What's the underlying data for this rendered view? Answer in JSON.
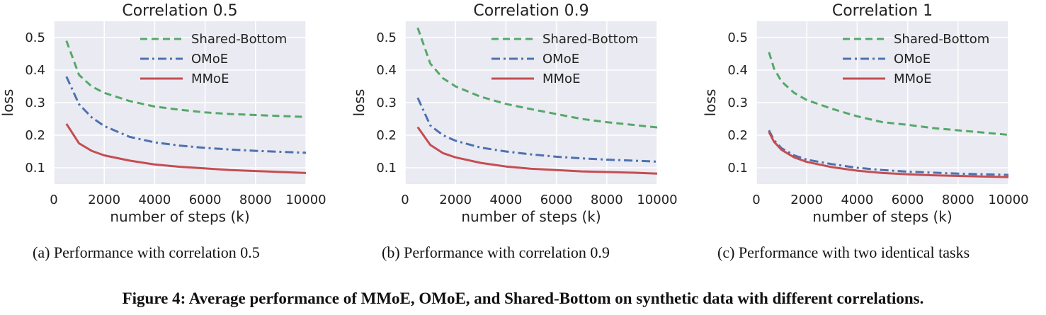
{
  "figure_caption": "Figure 4: Average performance of MMoE, OMoE, and Shared-Bottom on synthetic data with different correlations.",
  "colors": {
    "Shared-Bottom": "#55a868",
    "OMoE": "#4c72b0",
    "MMoE": "#c44e52",
    "plot_background": "#eaeaf2",
    "grid": "#ffffff"
  },
  "chart_data": [
    {
      "type": "line",
      "title": "Correlation 0.5",
      "caption": "(a) Performance with correlation 0.5",
      "xlabel": "number of steps (k)",
      "ylabel": "loss",
      "xlim": [
        0,
        10000
      ],
      "ylim": [
        0.05,
        0.55
      ],
      "xticks": [
        0,
        2000,
        4000,
        6000,
        8000,
        10000
      ],
      "yticks": [
        0.1,
        0.2,
        0.3,
        0.4,
        0.5
      ],
      "ytick_labels": [
        "0.1",
        "0.2",
        "0.3",
        "0.4",
        "0.5"
      ],
      "grid": true,
      "legend": "top-right",
      "x": [
        500,
        1000,
        1500,
        2000,
        3000,
        4000,
        5000,
        6000,
        7000,
        8000,
        9000,
        10000
      ],
      "series": [
        {
          "name": "Shared-Bottom",
          "style": "dashed",
          "values": [
            0.49,
            0.385,
            0.35,
            0.33,
            0.305,
            0.288,
            0.278,
            0.27,
            0.265,
            0.262,
            0.259,
            0.256
          ]
        },
        {
          "name": "OMoE",
          "style": "dashdot",
          "values": [
            0.38,
            0.295,
            0.255,
            0.228,
            0.195,
            0.178,
            0.168,
            0.161,
            0.156,
            0.152,
            0.149,
            0.146
          ]
        },
        {
          "name": "MMoE",
          "style": "solid",
          "values": [
            0.235,
            0.175,
            0.152,
            0.138,
            0.122,
            0.11,
            0.103,
            0.098,
            0.093,
            0.09,
            0.087,
            0.084
          ]
        }
      ]
    },
    {
      "type": "line",
      "title": "Correlation 0.9",
      "caption": "(b) Performance with correlation 0.9",
      "xlabel": "number of steps (k)",
      "ylabel": "loss",
      "xlim": [
        0,
        10000
      ],
      "ylim": [
        0.05,
        0.55
      ],
      "xticks": [
        0,
        2000,
        4000,
        6000,
        8000,
        10000
      ],
      "yticks": [
        0.1,
        0.2,
        0.3,
        0.4,
        0.5
      ],
      "ytick_labels": [
        "0.1",
        "0.2",
        "0.3",
        "0.4",
        "0.5"
      ],
      "grid": true,
      "legend": "top-right",
      "x": [
        500,
        1000,
        1500,
        2000,
        3000,
        4000,
        5000,
        6000,
        7000,
        8000,
        9000,
        10000
      ],
      "series": [
        {
          "name": "Shared-Bottom",
          "style": "dashed",
          "values": [
            0.53,
            0.42,
            0.375,
            0.35,
            0.318,
            0.296,
            0.28,
            0.265,
            0.25,
            0.24,
            0.232,
            0.224
          ]
        },
        {
          "name": "OMoE",
          "style": "dashdot",
          "values": [
            0.315,
            0.23,
            0.2,
            0.183,
            0.162,
            0.15,
            0.141,
            0.134,
            0.129,
            0.125,
            0.122,
            0.119
          ]
        },
        {
          "name": "MMoE",
          "style": "solid",
          "values": [
            0.225,
            0.17,
            0.145,
            0.132,
            0.115,
            0.104,
            0.097,
            0.093,
            0.089,
            0.087,
            0.085,
            0.082
          ]
        }
      ]
    },
    {
      "type": "line",
      "title": "Correlation 1",
      "caption": "(c) Performance with two identical tasks",
      "xlabel": "number of steps (k)",
      "ylabel": "loss",
      "xlim": [
        0,
        10000
      ],
      "ylim": [
        0.05,
        0.55
      ],
      "xticks": [
        0,
        2000,
        4000,
        6000,
        8000,
        10000
      ],
      "yticks": [
        0.1,
        0.2,
        0.3,
        0.4,
        0.5
      ],
      "ytick_labels": [
        "0.1",
        "0.2",
        "0.3",
        "0.4",
        "0.5"
      ],
      "grid": true,
      "legend": "top-right",
      "x": [
        500,
        700,
        1000,
        1500,
        2000,
        3000,
        4000,
        5000,
        6000,
        7000,
        8000,
        9000,
        10000
      ],
      "series": [
        {
          "name": "Shared-Bottom",
          "style": "dashed",
          "values": [
            0.455,
            0.405,
            0.365,
            0.33,
            0.308,
            0.281,
            0.258,
            0.24,
            0.232,
            0.222,
            0.215,
            0.208,
            0.201
          ]
        },
        {
          "name": "OMoE",
          "style": "dashdot",
          "values": [
            0.215,
            0.185,
            0.16,
            0.138,
            0.125,
            0.111,
            0.1,
            0.093,
            0.088,
            0.085,
            0.082,
            0.08,
            0.078
          ]
        },
        {
          "name": "MMoE",
          "style": "solid",
          "values": [
            0.21,
            0.18,
            0.155,
            0.132,
            0.118,
            0.102,
            0.091,
            0.084,
            0.08,
            0.077,
            0.075,
            0.073,
            0.071
          ]
        }
      ]
    }
  ]
}
